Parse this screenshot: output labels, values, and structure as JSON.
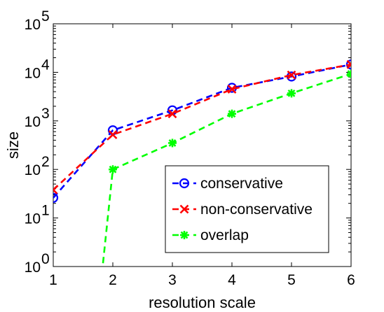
{
  "chart_data": {
    "type": "line",
    "xlabel": "resolution scale",
    "ylabel": "size",
    "xlim": [
      1,
      6
    ],
    "ylim": [
      1,
      100000
    ],
    "yscale": "log",
    "xticks": [
      1,
      2,
      3,
      4,
      5,
      6
    ],
    "yticks": [
      {
        "value": 1,
        "base": "10",
        "exp": "0"
      },
      {
        "value": 10,
        "base": "10",
        "exp": "1"
      },
      {
        "value": 100,
        "base": "10",
        "exp": "2"
      },
      {
        "value": 1000,
        "base": "10",
        "exp": "3"
      },
      {
        "value": 10000,
        "base": "10",
        "exp": "4"
      },
      {
        "value": 100000,
        "base": "10",
        "exp": "5"
      }
    ],
    "grid": false,
    "legend_position": "lower-right",
    "series": [
      {
        "name": "conservative",
        "color": "#0000ff",
        "marker": "circle",
        "linestyle": "dashed",
        "x": [
          1,
          2,
          3,
          4,
          5,
          6
        ],
        "y": [
          26,
          640,
          1650,
          4800,
          8200,
          14500
        ]
      },
      {
        "name": "non-conservative",
        "color": "#ff0000",
        "marker": "x",
        "linestyle": "dashed",
        "x": [
          1,
          2,
          3,
          4,
          5,
          6
        ],
        "y": [
          38,
          520,
          1400,
          4500,
          8800,
          14500
        ]
      },
      {
        "name": "overlap",
        "color": "#00ff00",
        "marker": "asterisk",
        "linestyle": "dashed",
        "x": [
          2,
          3,
          4,
          5,
          6
        ],
        "y": [
          100,
          350,
          1400,
          3700,
          9300
        ],
        "note_line_from_below": true
      }
    ]
  }
}
